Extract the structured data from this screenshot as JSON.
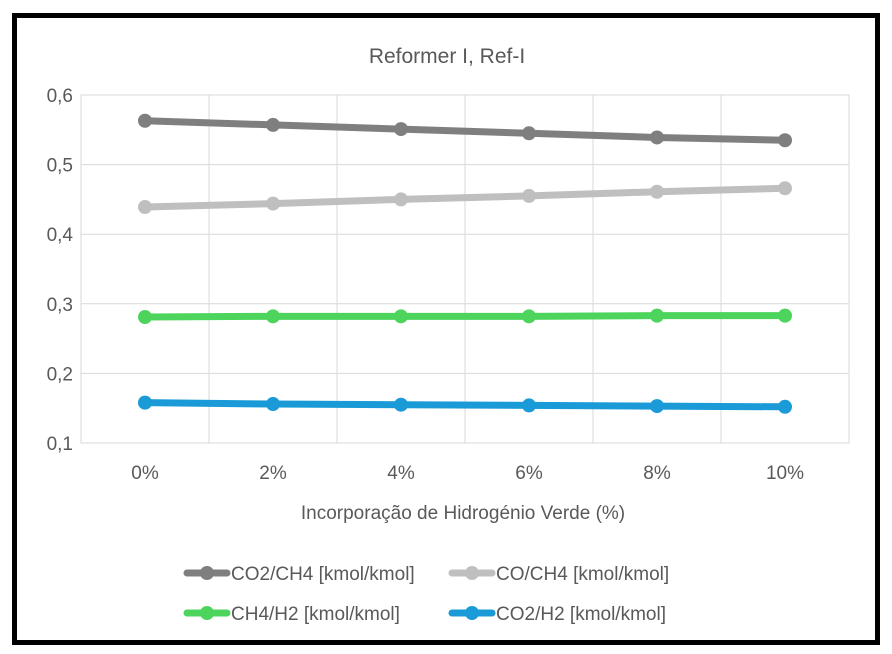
{
  "chart_data": {
    "type": "line",
    "title": "Reformer I, Ref-I",
    "xlabel": "Incorporação de Hidrogénio Verde (%)",
    "ylabel": "",
    "categories": [
      "0%",
      "2%",
      "4%",
      "6%",
      "8%",
      "10%"
    ],
    "ylim": [
      0.1,
      0.6
    ],
    "yticks": [
      0.1,
      0.2,
      0.3,
      0.4,
      0.5,
      0.6
    ],
    "ytick_labels": [
      "0,1",
      "0,2",
      "0,3",
      "0,4",
      "0,5",
      "0,6"
    ],
    "grid": true,
    "legend_position": "bottom",
    "series": [
      {
        "name": "CO2/CH4 [kmol/kmol]",
        "color": "#7f7f7f",
        "values": [
          0.563,
          0.557,
          0.551,
          0.545,
          0.539,
          0.535
        ]
      },
      {
        "name": "CO/CH4 [kmol/kmol]",
        "color": "#bfbfbf",
        "values": [
          0.439,
          0.444,
          0.45,
          0.455,
          0.461,
          0.466
        ]
      },
      {
        "name": "CH4/H2 [kmol/kmol]",
        "color": "#4cd45c",
        "values": [
          0.281,
          0.282,
          0.282,
          0.282,
          0.283,
          0.283
        ]
      },
      {
        "name": "CO2/H2 [kmol/kmol]",
        "color": "#1a9ad7",
        "values": [
          0.158,
          0.156,
          0.155,
          0.154,
          0.153,
          0.152
        ]
      }
    ]
  }
}
